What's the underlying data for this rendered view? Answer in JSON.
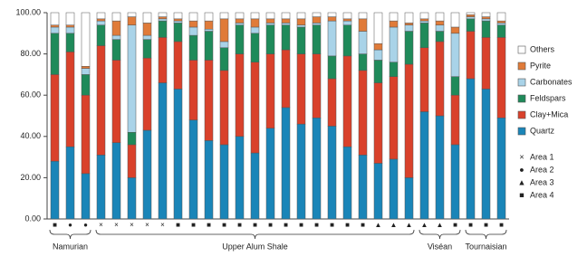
{
  "chart_data": {
    "type": "stacked-bar",
    "categories": [
      "■",
      "●",
      "●",
      "×",
      "×",
      "×",
      "×",
      "×",
      "■",
      "■",
      "■",
      "■",
      "■",
      "■",
      "■",
      "■",
      "■",
      "■",
      "■",
      "■",
      "■",
      "▲",
      "▲",
      "▲",
      "▲",
      "▲",
      "■",
      "■",
      "■",
      "■"
    ],
    "groups": [
      "Namurian",
      "Namurian",
      "Namurian",
      "Upper Alum Shale",
      "Upper Alum Shale",
      "Upper Alum Shale",
      "Upper Alum Shale",
      "Upper Alum Shale",
      "Upper Alum Shale",
      "Upper Alum Shale",
      "Upper Alum Shale",
      "Upper Alum Shale",
      "Upper Alum Shale",
      "Upper Alum Shale",
      "Upper Alum Shale",
      "Upper Alum Shale",
      "Upper Alum Shale",
      "Upper Alum Shale",
      "Upper Alum Shale",
      "Upper Alum Shale",
      "Upper Alum Shale",
      "Upper Alum Shale",
      "Upper Alum Shale",
      "Upper Alum Shale",
      "Viséan",
      "Viséan",
      "Viséan",
      "Tournaisian",
      "Tournaisian",
      "Tournaisian"
    ],
    "series": [
      {
        "name": "Quartz",
        "color": "#1a85b8",
        "values": [
          28,
          35,
          22,
          31,
          37,
          20,
          43,
          66,
          63,
          48,
          38,
          36,
          40,
          32,
          44,
          54,
          46,
          49,
          45,
          35,
          31,
          27,
          29,
          20,
          52,
          50,
          36,
          68,
          63,
          49
        ]
      },
      {
        "name": "Clay+Mica",
        "color": "#d9412b",
        "values": [
          42,
          46,
          38,
          53,
          40,
          16,
          35,
          22,
          23,
          29,
          39,
          36,
          40,
          44,
          36,
          28,
          34,
          31,
          23,
          44,
          41,
          39,
          40,
          55,
          31,
          36,
          24,
          23,
          25,
          39
        ]
      },
      {
        "name": "Feldspars",
        "color": "#1f8a5a",
        "values": [
          20,
          9,
          10,
          10,
          10,
          6,
          9,
          8,
          9,
          12,
          14,
          11,
          14,
          14,
          14,
          12,
          13,
          14,
          11,
          15,
          8,
          11,
          7,
          16,
          12,
          5,
          9,
          6,
          8,
          6
        ]
      },
      {
        "name": "Carbonates",
        "color": "#a9d3e8",
        "values": [
          3,
          3,
          3,
          2,
          2,
          52,
          2,
          1,
          1,
          4,
          1,
          3,
          1,
          3,
          1,
          1,
          1,
          1,
          17,
          2,
          11,
          5,
          17,
          3,
          1,
          3,
          21,
          1,
          1,
          1
        ]
      },
      {
        "name": "Pyrite",
        "color": "#e07b39",
        "values": [
          1,
          1,
          1,
          1,
          7,
          4,
          6,
          1,
          1,
          3,
          4,
          11,
          2,
          4,
          2,
          2,
          3,
          3,
          2,
          1,
          6,
          3,
          3,
          1,
          1,
          2,
          3,
          1,
          1,
          1
        ]
      },
      {
        "name": "Others",
        "color": "#ffffff",
        "values": [
          6,
          6,
          26,
          3,
          4,
          2,
          5,
          2,
          3,
          4,
          4,
          3,
          3,
          3,
          3,
          3,
          3,
          2,
          2,
          3,
          3,
          15,
          4,
          5,
          3,
          4,
          7,
          1,
          2,
          4
        ]
      }
    ],
    "ylim": [
      0,
      100
    ],
    "yticks": [
      {
        "value": 0,
        "label": "0.00"
      },
      {
        "value": 20,
        "label": "20.00"
      },
      {
        "value": 40,
        "label": "40.00"
      },
      {
        "value": 60,
        "label": "60.00"
      },
      {
        "value": 80,
        "label": "80.00"
      },
      {
        "value": 100,
        "label": "100.00"
      }
    ],
    "marker_legend": [
      {
        "symbol": "×",
        "label": "Area 1"
      },
      {
        "symbol": "●",
        "label": "Area 2"
      },
      {
        "symbol": "▲",
        "label": "Area 3"
      },
      {
        "symbol": "■",
        "label": "Area 4"
      }
    ]
  }
}
